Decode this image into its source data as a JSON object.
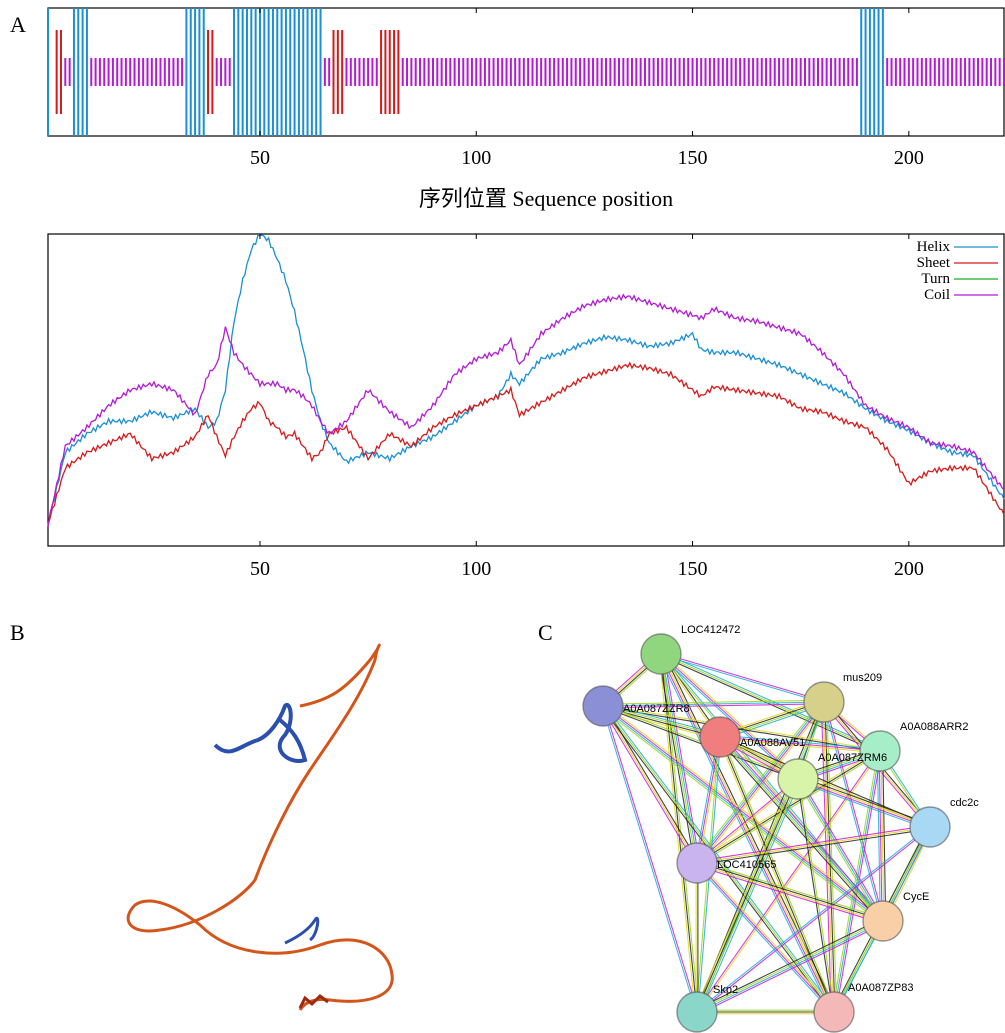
{
  "panels": {
    "a": "A",
    "b": "B",
    "c": "C"
  },
  "chart_data": [
    {
      "type": "bar",
      "description_role": "secondary-structure-track",
      "xlabel": "序列位置 Sequence position",
      "xlim": [
        1,
        222
      ],
      "xticks": [
        50,
        100,
        150,
        200
      ],
      "colors": {
        "Helix": "#1a8fd6",
        "Sheet": "#d61a1a",
        "Coil": "#b21ad6"
      },
      "segments": [
        {
          "type": "Helix",
          "start": 1,
          "end": 1
        },
        {
          "type": "Sheet",
          "start": 3,
          "end": 4
        },
        {
          "type": "Coil",
          "start": 5,
          "end": 6
        },
        {
          "type": "Helix",
          "start": 7,
          "end": 10
        },
        {
          "type": "Coil",
          "start": 11,
          "end": 32
        },
        {
          "type": "Helix",
          "start": 33,
          "end": 37
        },
        {
          "type": "Sheet",
          "start": 38,
          "end": 39
        },
        {
          "type": "Coil",
          "start": 40,
          "end": 43
        },
        {
          "type": "Helix",
          "start": 44,
          "end": 64
        },
        {
          "type": "Coil",
          "start": 65,
          "end": 66
        },
        {
          "type": "Sheet",
          "start": 67,
          "end": 69
        },
        {
          "type": "Coil",
          "start": 70,
          "end": 77
        },
        {
          "type": "Sheet",
          "start": 78,
          "end": 82
        },
        {
          "type": "Coil",
          "start": 83,
          "end": 188
        },
        {
          "type": "Helix",
          "start": 189,
          "end": 194
        },
        {
          "type": "Coil",
          "start": 195,
          "end": 222
        }
      ]
    },
    {
      "type": "line",
      "xlim": [
        1,
        222
      ],
      "xticks": [
        50,
        100,
        150,
        200
      ],
      "legend_position": "top-right",
      "series": [
        {
          "name": "Helix",
          "color": "#1a8fd6",
          "x": [
            1,
            5,
            10,
            15,
            20,
            25,
            30,
            35,
            38,
            40,
            42,
            44,
            46,
            48,
            50,
            52,
            54,
            56,
            58,
            60,
            62,
            64,
            66,
            70,
            75,
            80,
            85,
            90,
            95,
            100,
            105,
            108,
            110,
            115,
            120,
            125,
            130,
            135,
            140,
            145,
            150,
            152,
            155,
            160,
            165,
            170,
            175,
            180,
            185,
            190,
            195,
            200,
            205,
            210,
            215,
            222
          ],
          "y": [
            0.07,
            0.3,
            0.36,
            0.4,
            0.4,
            0.43,
            0.41,
            0.44,
            0.38,
            0.4,
            0.5,
            0.72,
            0.85,
            0.95,
            1.0,
            0.98,
            0.92,
            0.85,
            0.75,
            0.63,
            0.5,
            0.4,
            0.33,
            0.27,
            0.3,
            0.28,
            0.32,
            0.35,
            0.4,
            0.45,
            0.48,
            0.55,
            0.52,
            0.6,
            0.62,
            0.65,
            0.67,
            0.66,
            0.64,
            0.65,
            0.68,
            0.63,
            0.62,
            0.62,
            0.6,
            0.58,
            0.55,
            0.52,
            0.49,
            0.44,
            0.4,
            0.37,
            0.33,
            0.3,
            0.29,
            0.15
          ]
        },
        {
          "name": "Sheet",
          "color": "#d61a1a",
          "x": [
            1,
            5,
            10,
            15,
            20,
            25,
            30,
            35,
            38,
            40,
            42,
            44,
            46,
            48,
            50,
            52,
            54,
            56,
            58,
            60,
            62,
            64,
            66,
            70,
            75,
            80,
            85,
            90,
            95,
            100,
            105,
            108,
            110,
            115,
            120,
            125,
            130,
            135,
            140,
            145,
            150,
            152,
            155,
            160,
            165,
            170,
            175,
            180,
            185,
            190,
            195,
            200,
            205,
            210,
            215,
            222
          ],
          "y": [
            0.07,
            0.25,
            0.3,
            0.33,
            0.36,
            0.28,
            0.3,
            0.35,
            0.42,
            0.35,
            0.29,
            0.35,
            0.4,
            0.44,
            0.46,
            0.4,
            0.38,
            0.35,
            0.36,
            0.32,
            0.28,
            0.3,
            0.36,
            0.38,
            0.28,
            0.36,
            0.32,
            0.38,
            0.42,
            0.45,
            0.48,
            0.5,
            0.42,
            0.46,
            0.5,
            0.54,
            0.56,
            0.58,
            0.57,
            0.55,
            0.5,
            0.48,
            0.51,
            0.5,
            0.49,
            0.48,
            0.44,
            0.43,
            0.4,
            0.38,
            0.31,
            0.2,
            0.24,
            0.25,
            0.25,
            0.1
          ]
        },
        {
          "name": "Turn",
          "color": "#1aad1a",
          "x": [],
          "y": []
        },
        {
          "name": "Coil",
          "color": "#b21ad6",
          "x": [
            1,
            5,
            10,
            15,
            20,
            25,
            30,
            35,
            38,
            40,
            42,
            44,
            46,
            48,
            50,
            52,
            54,
            56,
            58,
            60,
            62,
            64,
            66,
            70,
            75,
            80,
            85,
            90,
            95,
            100,
            105,
            108,
            110,
            115,
            120,
            125,
            130,
            135,
            140,
            145,
            150,
            152,
            155,
            160,
            165,
            170,
            175,
            180,
            185,
            190,
            195,
            200,
            205,
            210,
            215,
            222
          ],
          "y": [
            0.07,
            0.32,
            0.38,
            0.45,
            0.5,
            0.52,
            0.5,
            0.42,
            0.55,
            0.58,
            0.7,
            0.62,
            0.58,
            0.55,
            0.52,
            0.52,
            0.52,
            0.5,
            0.5,
            0.48,
            0.45,
            0.4,
            0.36,
            0.4,
            0.5,
            0.43,
            0.38,
            0.45,
            0.55,
            0.6,
            0.62,
            0.66,
            0.58,
            0.68,
            0.73,
            0.77,
            0.79,
            0.8,
            0.78,
            0.76,
            0.74,
            0.73,
            0.76,
            0.73,
            0.72,
            0.7,
            0.68,
            0.62,
            0.55,
            0.45,
            0.41,
            0.38,
            0.33,
            0.32,
            0.3,
            0.18
          ]
        }
      ]
    }
  ],
  "network": {
    "nodes": [
      {
        "label": "LOC412472",
        "color": "#8fd67f"
      },
      {
        "label": "mus209",
        "color": "#d6d08a"
      },
      {
        "label": "A0A088ARR2",
        "color": "#a6eec8"
      },
      {
        "label": "A0A087ZZR8",
        "color": "#8a8fd6"
      },
      {
        "label": "A0A088AV51",
        "color": "#f07e7e"
      },
      {
        "label": "A0A087ZRM6",
        "color": "#d8f4a8"
      },
      {
        "label": "cdc2c",
        "color": "#a8d8f4"
      },
      {
        "label": "LOC410565",
        "color": "#c9b4f0"
      },
      {
        "label": "CycE",
        "color": "#f9cfa8"
      },
      {
        "label": "Skp2",
        "color": "#8ad6c9"
      },
      {
        "label": "A0A087ZP83",
        "color": "#f4b8b8"
      }
    ],
    "edge_colors": [
      "#d21ad6",
      "#1ab0d6",
      "#9ad61a",
      "#222222",
      "#e0d61a"
    ]
  },
  "structure": {
    "colors": {
      "ordered": "#2a4fae",
      "disordered": "#d4551a"
    }
  }
}
